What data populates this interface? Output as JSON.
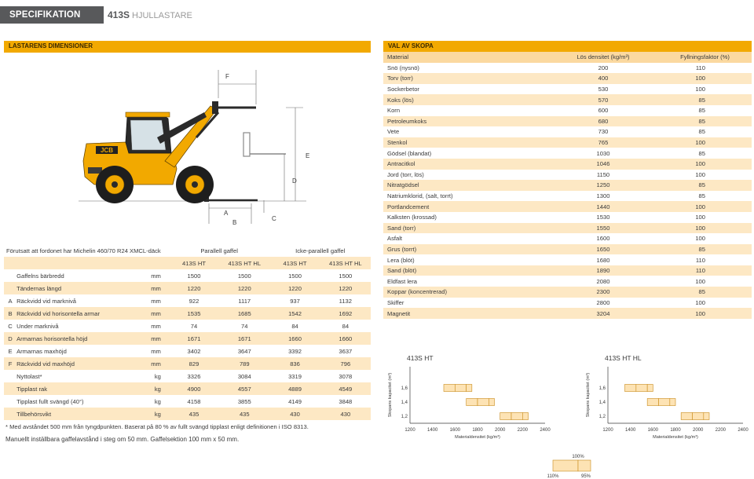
{
  "header": {
    "tag": "SPECIFIKATION",
    "model": "413S",
    "model_suffix": "HJULLASTARE"
  },
  "dimensions": {
    "title": "LASTARENS DIMENSIONER",
    "figure_labels": {
      "F": "F",
      "E": "E",
      "D": "D",
      "A": "A",
      "B": "B",
      "C": "C"
    },
    "note": "Förutsatt att fordonet har Michelin 460/70 R24 XMCL-däck",
    "group1": "Parallell gaffel",
    "group2": "Icke-parallell gaffel",
    "models": [
      "413S HT",
      "413S HT HL",
      "413S HT",
      "413S HT HL"
    ],
    "rows": [
      {
        "letter": "",
        "label": "Gaffelns bärbredd",
        "unit": "mm",
        "values": [
          "1500",
          "1500",
          "1500",
          "1500"
        ]
      },
      {
        "letter": "",
        "label": "Tändernas längd",
        "unit": "mm",
        "values": [
          "1220",
          "1220",
          "1220",
          "1220"
        ]
      },
      {
        "letter": "A",
        "label": "Räckvidd vid marknivå",
        "unit": "mm",
        "values": [
          "922",
          "1117",
          "937",
          "1132"
        ]
      },
      {
        "letter": "B",
        "label": "Räckvidd vid horisontella armar",
        "unit": "mm",
        "values": [
          "1535",
          "1685",
          "1542",
          "1692"
        ]
      },
      {
        "letter": "C",
        "label": "Under marknivå",
        "unit": "mm",
        "values": [
          "74",
          "74",
          "84",
          "84"
        ]
      },
      {
        "letter": "D",
        "label": "Armarnas horisontella höjd",
        "unit": "mm",
        "values": [
          "1671",
          "1671",
          "1660",
          "1660"
        ]
      },
      {
        "letter": "E",
        "label": "Armarnas maxhöjd",
        "unit": "mm",
        "values": [
          "3402",
          "3647",
          "3392",
          "3637"
        ]
      },
      {
        "letter": "F",
        "label": "Räckvidd vid maxhöjd",
        "unit": "mm",
        "values": [
          "829",
          "789",
          "836",
          "796"
        ]
      },
      {
        "letter": "",
        "label": "Nyttolast*",
        "unit": "kg",
        "values": [
          "3326",
          "3084",
          "3319",
          "3078"
        ]
      },
      {
        "letter": "",
        "label": "Tipplast rak",
        "unit": "kg",
        "values": [
          "4900",
          "4557",
          "4889",
          "4549"
        ]
      },
      {
        "letter": "",
        "label": "Tipplast fullt svängd (40°)",
        "unit": "kg",
        "values": [
          "4158",
          "3855",
          "4149",
          "3848"
        ]
      },
      {
        "letter": "",
        "label": "Tillbehörsvikt",
        "unit": "kg",
        "values": [
          "435",
          "435",
          "430",
          "430"
        ]
      }
    ],
    "footnote1": "* Med avståndet 500 mm från tyngdpunkten. Baserat på 80 % av fullt svängd tipplast enligt definitionen i ISO 8313.",
    "footnote2": "Manuellt inställbara gaffelavstånd i steg om 50 mm. Gaffelsektion 100 mm x 50 mm."
  },
  "materials": {
    "title": "VAL AV SKOPA",
    "col_material": "Material",
    "col_density": "Lös densitet (kg/m³)",
    "col_fill": "Fyllningsfaktor (%)",
    "rows": [
      {
        "name": "Snö (nysnö)",
        "density": "200",
        "fill": "110"
      },
      {
        "name": "Torv (torr)",
        "density": "400",
        "fill": "100"
      },
      {
        "name": "Sockerbetor",
        "density": "530",
        "fill": "100"
      },
      {
        "name": "Koks (lös)",
        "density": "570",
        "fill": "85"
      },
      {
        "name": "Korn",
        "density": "600",
        "fill": "85"
      },
      {
        "name": "Petroleumkoks",
        "density": "680",
        "fill": "85"
      },
      {
        "name": "Vete",
        "density": "730",
        "fill": "85"
      },
      {
        "name": "Stenkol",
        "density": "765",
        "fill": "100"
      },
      {
        "name": "Gödsel (blandat)",
        "density": "1030",
        "fill": "85"
      },
      {
        "name": "Antracitkol",
        "density": "1046",
        "fill": "100"
      },
      {
        "name": "Jord (torr, lös)",
        "density": "1150",
        "fill": "100"
      },
      {
        "name": "Nitratgödsel",
        "density": "1250",
        "fill": "85"
      },
      {
        "name": "Natriumklorid, (salt, torrt)",
        "density": "1300",
        "fill": "85"
      },
      {
        "name": "Portlandcement",
        "density": "1440",
        "fill": "100"
      },
      {
        "name": "Kalksten (krossad)",
        "density": "1530",
        "fill": "100"
      },
      {
        "name": "Sand (torr)",
        "density": "1550",
        "fill": "100"
      },
      {
        "name": "Asfalt",
        "density": "1600",
        "fill": "100"
      },
      {
        "name": "Grus (torrt)",
        "density": "1650",
        "fill": "85"
      },
      {
        "name": "Lera (blöt)",
        "density": "1680",
        "fill": "110"
      },
      {
        "name": "Sand (blöt)",
        "density": "1890",
        "fill": "110"
      },
      {
        "name": "Eldfast lera",
        "density": "2080",
        "fill": "100"
      },
      {
        "name": "Koppar (koncentrerad)",
        "density": "2300",
        "fill": "85"
      },
      {
        "name": "Skiffer",
        "density": "2800",
        "fill": "100"
      },
      {
        "name": "Magnetit",
        "density": "3204",
        "fill": "100"
      }
    ]
  },
  "chart_data": [
    {
      "type": "bar",
      "title": "413S HT",
      "xlabel": "Materialdensitet (kg/m³)",
      "ylabel": "Skopans kapacitet (m³)",
      "x_ticks": [
        "1200",
        "1400",
        "1600",
        "1800",
        "2000",
        "2200",
        "2400"
      ],
      "y_ticks": [
        "1,6",
        "1,4",
        "1,2"
      ],
      "xlim": [
        1200,
        2400
      ],
      "ylim": [
        1.1,
        1.9
      ],
      "series": [
        {
          "name": "110%",
          "bars": [
            {
              "capacity": 1.6,
              "x_from": 1500,
              "x_to": 1600
            },
            {
              "capacity": 1.4,
              "x_from": 1700,
              "x_to": 1800
            },
            {
              "capacity": 1.2,
              "x_from": 2000,
              "x_to": 2100
            }
          ]
        },
        {
          "name": "100%",
          "bars": [
            {
              "capacity": 1.6,
              "x_from": 1600,
              "x_to": 1700
            },
            {
              "capacity": 1.4,
              "x_from": 1800,
              "x_to": 1900
            },
            {
              "capacity": 1.2,
              "x_from": 2100,
              "x_to": 2200
            }
          ]
        },
        {
          "name": "95%",
          "bars": [
            {
              "capacity": 1.6,
              "x_from": 1700,
              "x_to": 1750
            },
            {
              "capacity": 1.4,
              "x_from": 1900,
              "x_to": 1950
            },
            {
              "capacity": 1.2,
              "x_from": 2200,
              "x_to": 2250
            }
          ]
        }
      ]
    },
    {
      "type": "bar",
      "title": "413S HT HL",
      "xlabel": "Materialdensitet (kg/m³)",
      "ylabel": "Skopans kapacitet (m³)",
      "x_ticks": [
        "1200",
        "1400",
        "1600",
        "1800",
        "2000",
        "2200",
        "2400"
      ],
      "y_ticks": [
        "1,6",
        "1,4",
        "1,2"
      ],
      "xlim": [
        1200,
        2400
      ],
      "ylim": [
        1.1,
        1.9
      ],
      "series": [
        {
          "name": "110%",
          "bars": [
            {
              "capacity": 1.6,
              "x_from": 1350,
              "x_to": 1450
            },
            {
              "capacity": 1.4,
              "x_from": 1550,
              "x_to": 1650
            },
            {
              "capacity": 1.2,
              "x_from": 1850,
              "x_to": 1950
            }
          ]
        },
        {
          "name": "100%",
          "bars": [
            {
              "capacity": 1.6,
              "x_from": 1450,
              "x_to": 1550
            },
            {
              "capacity": 1.4,
              "x_from": 1650,
              "x_to": 1750
            },
            {
              "capacity": 1.2,
              "x_from": 1950,
              "x_to": 2050
            }
          ]
        },
        {
          "name": "95%",
          "bars": [
            {
              "capacity": 1.6,
              "x_from": 1550,
              "x_to": 1600
            },
            {
              "capacity": 1.4,
              "x_from": 1750,
              "x_to": 1800
            },
            {
              "capacity": 1.2,
              "x_from": 2050,
              "x_to": 2100
            }
          ]
        }
      ]
    }
  ],
  "legend": {
    "pct100": "100%",
    "pct110": "110%",
    "pct95": "95%"
  },
  "colors": {
    "accent": "#f2a900",
    "row_shade": "#fde8c4",
    "bar_fill": "#fde3b4",
    "bar_stroke": "#c98a1a",
    "header_grey": "#58595b"
  }
}
